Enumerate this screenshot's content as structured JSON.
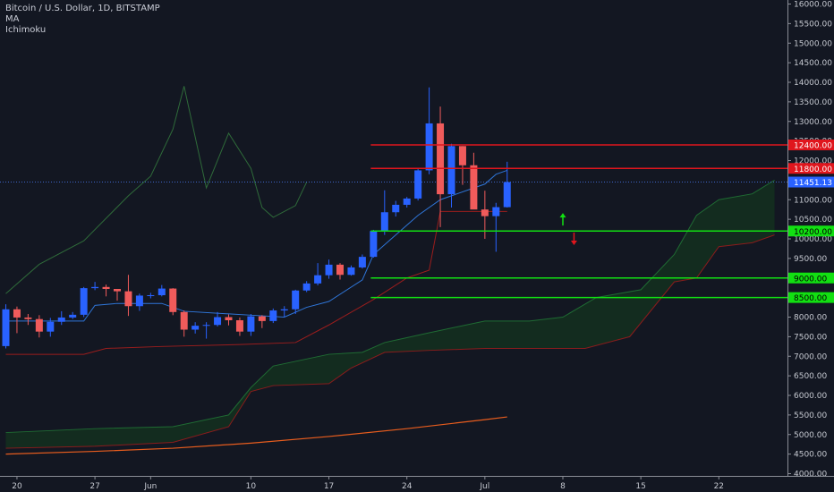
{
  "header": {
    "symbol": "Bitcoin / U.S. Dollar, 1D, BITSTAMP",
    "indicator_1": "MA",
    "indicator_2": "Ichimoku"
  },
  "colors": {
    "background": "#131722",
    "up": "#2962ff",
    "down": "#f05b5b",
    "resistance": "#e0161d",
    "support": "#12e012",
    "price_line": "#3f66c8",
    "conversion": "#2f76d9",
    "base": "#9b1d1d",
    "lagging": "#1e5a2d",
    "ma": "#e85d1e",
    "cloud_fill": "#14301e"
  },
  "chart_data": {
    "type": "candlestick",
    "title": "Bitcoin / U.S. Dollar, 1D, BITSTAMP",
    "ylim": [
      4000,
      16000
    ],
    "y_ticks": [
      4000,
      4500,
      5000,
      5500,
      6000,
      6500,
      7000,
      7500,
      8000,
      8500,
      9000,
      9500,
      10000,
      10500,
      11000,
      11500,
      12000,
      12500,
      13000,
      13500,
      14000,
      14500,
      15000,
      15500,
      16000
    ],
    "x_ticks": [
      {
        "label": "20",
        "date": "2019-05-20"
      },
      {
        "label": "27",
        "date": "2019-05-27"
      },
      {
        "label": "Jun",
        "date": "2019-06-01"
      },
      {
        "label": "10",
        "date": "2019-06-10"
      },
      {
        "label": "17",
        "date": "2019-06-17"
      },
      {
        "label": "24",
        "date": "2019-06-24"
      },
      {
        "label": "Jul",
        "date": "2019-07-01"
      },
      {
        "label": "8",
        "date": "2019-07-08"
      },
      {
        "label": "15",
        "date": "2019-07-15"
      },
      {
        "label": "22",
        "date": "2019-07-22"
      }
    ],
    "x_range": [
      "2019-05-19",
      "2019-07-27"
    ],
    "current_price": 11451.13,
    "candles": [
      {
        "date": "2019-05-19",
        "open": 7260,
        "high": 8330,
        "low": 7200,
        "close": 8200
      },
      {
        "date": "2019-05-20",
        "open": 8200,
        "high": 8270,
        "low": 7590,
        "close": 7990
      },
      {
        "date": "2019-05-21",
        "open": 7990,
        "high": 8080,
        "low": 7800,
        "close": 7950
      },
      {
        "date": "2019-05-22",
        "open": 7950,
        "high": 8050,
        "low": 7480,
        "close": 7630
      },
      {
        "date": "2019-05-23",
        "open": 7630,
        "high": 7980,
        "low": 7500,
        "close": 7880
      },
      {
        "date": "2019-05-24",
        "open": 7880,
        "high": 8150,
        "low": 7800,
        "close": 7990
      },
      {
        "date": "2019-05-25",
        "open": 7990,
        "high": 8130,
        "low": 7950,
        "close": 8060
      },
      {
        "date": "2019-05-26",
        "open": 8060,
        "high": 8770,
        "low": 8000,
        "close": 8740
      },
      {
        "date": "2019-05-27",
        "open": 8740,
        "high": 8900,
        "low": 8690,
        "close": 8770
      },
      {
        "date": "2019-05-28",
        "open": 8770,
        "high": 8830,
        "low": 8530,
        "close": 8720
      },
      {
        "date": "2019-05-29",
        "open": 8720,
        "high": 8720,
        "low": 8420,
        "close": 8660
      },
      {
        "date": "2019-05-30",
        "open": 8660,
        "high": 9080,
        "low": 8030,
        "close": 8280
      },
      {
        "date": "2019-05-31",
        "open": 8280,
        "high": 8600,
        "low": 8160,
        "close": 8550
      },
      {
        "date": "2019-06-01",
        "open": 8550,
        "high": 8620,
        "low": 8480,
        "close": 8560
      },
      {
        "date": "2019-06-02",
        "open": 8560,
        "high": 8820,
        "low": 8530,
        "close": 8730
      },
      {
        "date": "2019-06-03",
        "open": 8730,
        "high": 8740,
        "low": 8050,
        "close": 8130
      },
      {
        "date": "2019-06-04",
        "open": 8130,
        "high": 8170,
        "low": 7500,
        "close": 7680
      },
      {
        "date": "2019-06-05",
        "open": 7680,
        "high": 7870,
        "low": 7580,
        "close": 7780
      },
      {
        "date": "2019-06-06",
        "open": 7780,
        "high": 7870,
        "low": 7450,
        "close": 7800
      },
      {
        "date": "2019-06-07",
        "open": 7800,
        "high": 8130,
        "low": 7760,
        "close": 8000
      },
      {
        "date": "2019-06-08",
        "open": 8000,
        "high": 8070,
        "low": 7790,
        "close": 7920
      },
      {
        "date": "2019-06-09",
        "open": 7920,
        "high": 7990,
        "low": 7520,
        "close": 7630
      },
      {
        "date": "2019-06-10",
        "open": 7630,
        "high": 8080,
        "low": 7520,
        "close": 8020
      },
      {
        "date": "2019-06-11",
        "open": 8020,
        "high": 8050,
        "low": 7720,
        "close": 7900
      },
      {
        "date": "2019-06-12",
        "open": 7900,
        "high": 8220,
        "low": 7850,
        "close": 8170
      },
      {
        "date": "2019-06-13",
        "open": 8170,
        "high": 8280,
        "low": 8000,
        "close": 8200
      },
      {
        "date": "2019-06-14",
        "open": 8200,
        "high": 8700,
        "low": 8080,
        "close": 8680
      },
      {
        "date": "2019-06-15",
        "open": 8680,
        "high": 8920,
        "low": 8640,
        "close": 8860
      },
      {
        "date": "2019-06-16",
        "open": 8860,
        "high": 9380,
        "low": 8810,
        "close": 9070
      },
      {
        "date": "2019-06-17",
        "open": 9070,
        "high": 9470,
        "low": 8980,
        "close": 9340
      },
      {
        "date": "2019-06-18",
        "open": 9340,
        "high": 9380,
        "low": 8960,
        "close": 9080
      },
      {
        "date": "2019-06-19",
        "open": 9080,
        "high": 9320,
        "low": 9060,
        "close": 9270
      },
      {
        "date": "2019-06-20",
        "open": 9270,
        "high": 9600,
        "low": 9240,
        "close": 9540
      },
      {
        "date": "2019-06-21",
        "open": 9540,
        "high": 10230,
        "low": 9520,
        "close": 10200
      },
      {
        "date": "2019-06-22",
        "open": 10200,
        "high": 11240,
        "low": 10100,
        "close": 10680
      },
      {
        "date": "2019-06-23",
        "open": 10680,
        "high": 10970,
        "low": 10570,
        "close": 10870
      },
      {
        "date": "2019-06-24",
        "open": 10870,
        "high": 11070,
        "low": 10800,
        "close": 11030
      },
      {
        "date": "2019-06-25",
        "open": 11030,
        "high": 11800,
        "low": 10980,
        "close": 11750
      },
      {
        "date": "2019-06-26",
        "open": 11750,
        "high": 13870,
        "low": 11650,
        "close": 12950
      },
      {
        "date": "2019-06-27",
        "open": 12950,
        "high": 13380,
        "low": 10300,
        "close": 11140
      },
      {
        "date": "2019-06-28",
        "open": 11140,
        "high": 12430,
        "low": 10800,
        "close": 12370
      },
      {
        "date": "2019-06-29",
        "open": 12370,
        "high": 12370,
        "low": 11380,
        "close": 11880
      },
      {
        "date": "2019-06-30",
        "open": 11880,
        "high": 12200,
        "low": 10800,
        "close": 10750
      },
      {
        "date": "2019-07-01",
        "open": 10750,
        "high": 11230,
        "low": 10000,
        "close": 10580
      },
      {
        "date": "2019-07-02",
        "open": 10580,
        "high": 10920,
        "low": 9670,
        "close": 10810
      },
      {
        "date": "2019-07-03",
        "open": 10810,
        "high": 11970,
        "low": 10800,
        "close": 11450
      }
    ],
    "horizontal_lines": [
      {
        "value": 12400,
        "label": "12400.00",
        "kind": "resistance"
      },
      {
        "value": 11800,
        "label": "11800.00",
        "kind": "resistance"
      },
      {
        "value": 10200,
        "label": "10200.00",
        "kind": "support"
      },
      {
        "value": 9000,
        "label": "9000.00",
        "kind": "support"
      },
      {
        "value": 8500,
        "label": "8500.00",
        "kind": "support"
      }
    ],
    "annotations": [
      {
        "type": "arrow-up",
        "date": "2019-07-08",
        "value": 10500
      },
      {
        "type": "arrow-down",
        "date": "2019-07-09",
        "value": 10000
      }
    ],
    "ichimoku": {
      "conversion_line": [
        [
          "2019-05-19",
          7900
        ],
        [
          "2019-05-26",
          7900
        ],
        [
          "2019-05-27",
          8300
        ],
        [
          "2019-05-29",
          8350
        ],
        [
          "2019-06-02",
          8350
        ],
        [
          "2019-06-04",
          8150
        ],
        [
          "2019-06-10",
          8050
        ],
        [
          "2019-06-13",
          8000
        ],
        [
          "2019-06-15",
          8250
        ],
        [
          "2019-06-17",
          8400
        ],
        [
          "2019-06-20",
          8950
        ],
        [
          "2019-06-21",
          9600
        ],
        [
          "2019-06-23",
          10100
        ],
        [
          "2019-06-25",
          10600
        ],
        [
          "2019-06-27",
          11000
        ],
        [
          "2019-07-01",
          11400
        ],
        [
          "2019-07-02",
          11650
        ],
        [
          "2019-07-03",
          11750
        ]
      ],
      "base_line": [
        [
          "2019-05-19",
          7050
        ],
        [
          "2019-05-26",
          7050
        ],
        [
          "2019-05-28",
          7200
        ],
        [
          "2019-06-02",
          7250
        ],
        [
          "2019-06-09",
          7300
        ],
        [
          "2019-06-14",
          7350
        ],
        [
          "2019-06-17",
          7800
        ],
        [
          "2019-06-21",
          8450
        ],
        [
          "2019-06-24",
          9000
        ],
        [
          "2019-06-26",
          9200
        ],
        [
          "2019-06-27",
          10700
        ],
        [
          "2019-07-03",
          10700
        ]
      ],
      "lagging_span": [
        [
          "2019-05-19",
          8600
        ],
        [
          "2019-05-22",
          9350
        ],
        [
          "2019-05-26",
          9950
        ],
        [
          "2019-05-30",
          11100
        ],
        [
          "2019-06-01",
          11600
        ],
        [
          "2019-06-03",
          12800
        ],
        [
          "2019-06-04",
          13900
        ],
        [
          "2019-06-06",
          11300
        ],
        [
          "2019-06-08",
          12700
        ],
        [
          "2019-06-10",
          11800
        ],
        [
          "2019-06-11",
          10800
        ],
        [
          "2019-06-12",
          10550
        ],
        [
          "2019-06-14",
          10850
        ],
        [
          "2019-06-15",
          11450
        ]
      ],
      "senkou_a": [
        [
          "2019-05-19",
          5050
        ],
        [
          "2019-05-27",
          5150
        ],
        [
          "2019-06-03",
          5200
        ],
        [
          "2019-06-08",
          5500
        ],
        [
          "2019-06-10",
          6200
        ],
        [
          "2019-06-12",
          6750
        ],
        [
          "2019-06-17",
          7050
        ],
        [
          "2019-06-20",
          7100
        ],
        [
          "2019-06-22",
          7350
        ],
        [
          "2019-06-26",
          7600
        ],
        [
          "2019-07-01",
          7900
        ],
        [
          "2019-07-05",
          7900
        ],
        [
          "2019-07-08",
          8000
        ],
        [
          "2019-07-11",
          8500
        ],
        [
          "2019-07-15",
          8700
        ],
        [
          "2019-07-18",
          9600
        ],
        [
          "2019-07-20",
          10600
        ],
        [
          "2019-07-22",
          11000
        ],
        [
          "2019-07-25",
          11150
        ],
        [
          "2019-07-27",
          11500
        ]
      ],
      "senkou_b": [
        [
          "2019-05-19",
          4650
        ],
        [
          "2019-05-27",
          4700
        ],
        [
          "2019-06-03",
          4800
        ],
        [
          "2019-06-08",
          5200
        ],
        [
          "2019-06-10",
          6100
        ],
        [
          "2019-06-12",
          6250
        ],
        [
          "2019-06-17",
          6300
        ],
        [
          "2019-06-19",
          6700
        ],
        [
          "2019-06-22",
          7100
        ],
        [
          "2019-06-26",
          7150
        ],
        [
          "2019-07-01",
          7200
        ],
        [
          "2019-07-05",
          7200
        ],
        [
          "2019-07-10",
          7200
        ],
        [
          "2019-07-14",
          7500
        ],
        [
          "2019-07-18",
          8900
        ],
        [
          "2019-07-20",
          9000
        ],
        [
          "2019-07-22",
          9800
        ],
        [
          "2019-07-25",
          9900
        ],
        [
          "2019-07-27",
          10100
        ]
      ]
    },
    "moving_average": [
      [
        "2019-05-19",
        4500
      ],
      [
        "2019-05-27",
        4570
      ],
      [
        "2019-06-03",
        4650
      ],
      [
        "2019-06-10",
        4780
      ],
      [
        "2019-06-17",
        4950
      ],
      [
        "2019-06-24",
        5150
      ],
      [
        "2019-07-01",
        5380
      ],
      [
        "2019-07-03",
        5450
      ]
    ]
  }
}
